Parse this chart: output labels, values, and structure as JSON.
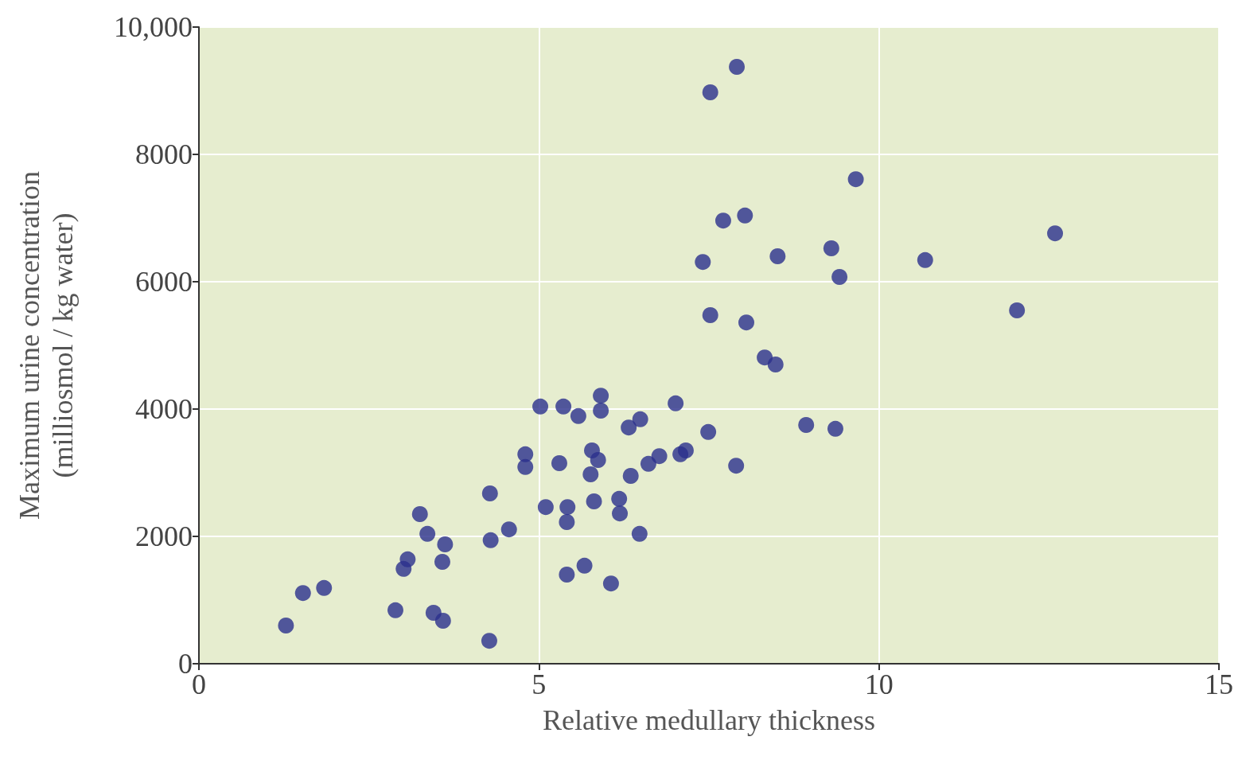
{
  "chart_data": {
    "type": "scatter",
    "xlabel": "Relative medullary thickness",
    "ylabel": "Maximum urine concentration\n(milliosmol / kg water)",
    "xlim": [
      0,
      15
    ],
    "xticks": [
      0,
      5,
      10,
      15
    ],
    "ylim": [
      0,
      10000
    ],
    "yticks": [
      0,
      2000,
      4000,
      6000,
      8000,
      {
        "value": 10000,
        "label": "10,000"
      }
    ],
    "grid": true,
    "marker": "circle",
    "series": [
      {
        "color": "#2b2f8c",
        "x": [
          1.28,
          1.53,
          1.84,
          2.89,
          3.01,
          3.07,
          3.25,
          3.36,
          3.45,
          3.59,
          3.58,
          3.62,
          4.27,
          4.28,
          4.29,
          4.56,
          4.8,
          4.8,
          5.02,
          5.1,
          5.3,
          5.36,
          5.42,
          5.41,
          5.41,
          5.58,
          5.67,
          5.76,
          5.78,
          5.81,
          5.87,
          5.91,
          5.91,
          6.06,
          6.18,
          6.19,
          6.32,
          6.35,
          6.48,
          6.49,
          6.61,
          6.77,
          7.08,
          7.16,
          7.01,
          7.41,
          7.49,
          7.52,
          7.52,
          7.71,
          7.9,
          7.91,
          8.03,
          8.05,
          8.32,
          8.48,
          8.51,
          8.93,
          9.3,
          9.36,
          9.42,
          9.66,
          10.68,
          12.03,
          12.59
        ],
        "values": [
          600,
          1110,
          1190,
          840,
          1490,
          1640,
          2350,
          2040,
          800,
          675,
          1600,
          1875,
          360,
          2675,
          1940,
          2110,
          3290,
          3090,
          4040,
          2460,
          3150,
          4040,
          2460,
          2225,
          1400,
          3890,
          1540,
          2975,
          3350,
          2550,
          3200,
          4210,
          3975,
          1260,
          2590,
          2360,
          3710,
          2950,
          2040,
          3840,
          3140,
          3260,
          3290,
          3350,
          4090,
          6310,
          3640,
          8975,
          5475,
          6960,
          3110,
          9375,
          7040,
          5360,
          4810,
          4700,
          6400,
          3750,
          6525,
          3690,
          6075,
          7610,
          6340,
          5550,
          6760
        ]
      }
    ]
  }
}
